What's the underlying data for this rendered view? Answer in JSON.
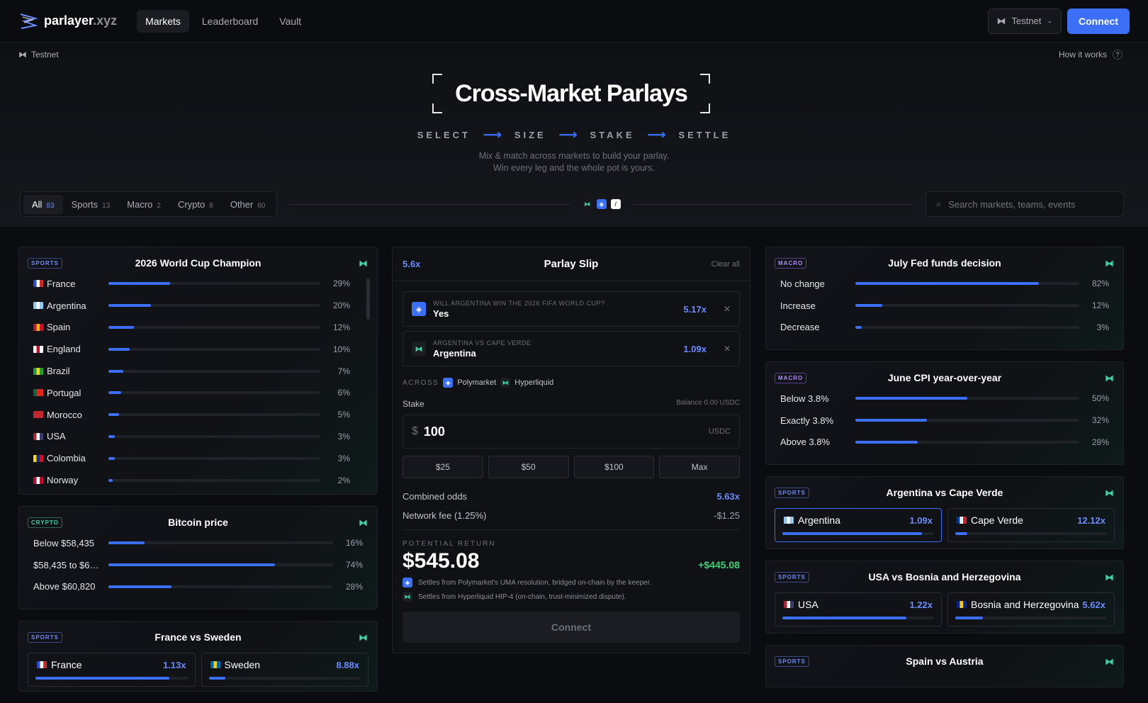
{
  "brand": {
    "name": "parlayer",
    "tld": ".xyz"
  },
  "nav": [
    {
      "label": "Markets"
    },
    {
      "label": "Leaderboard"
    },
    {
      "label": "Vault"
    }
  ],
  "header": {
    "network": "Testnet",
    "connect": "Connect"
  },
  "hero": {
    "testnet": "Testnet",
    "how": "How it works",
    "title": "Cross-Market Parlays",
    "steps": [
      "SELECT",
      "SIZE",
      "STAKE",
      "SETTLE"
    ],
    "tagline1": "Mix & match across markets to build your parlay.",
    "tagline2": "Win every leg and the whole pot is yours."
  },
  "filters": [
    {
      "label": "All",
      "count": "83"
    },
    {
      "label": "Sports",
      "count": "13"
    },
    {
      "label": "Macro",
      "count": "2"
    },
    {
      "label": "Crypto",
      "count": "8"
    },
    {
      "label": "Other",
      "count": "60"
    }
  ],
  "search": {
    "placeholder": "Search markets, teams, events"
  },
  "worldcup": {
    "badge": "SPORTS",
    "title": "2026 World Cup Champion",
    "rows": [
      {
        "label": "France",
        "pct": "29%",
        "value": 29,
        "flag": [
          "#2a4bd1",
          "#fff",
          "#d12a2a"
        ]
      },
      {
        "label": "Argentina",
        "pct": "20%",
        "value": 20,
        "flag": [
          "#8ec8f0",
          "#fff",
          "#8ec8f0"
        ]
      },
      {
        "label": "Spain",
        "pct": "12%",
        "value": 12,
        "flag": [
          "#c8102e",
          "#f1bf00",
          "#c8102e"
        ]
      },
      {
        "label": "England",
        "pct": "10%",
        "value": 10,
        "flag": [
          "#fff",
          "#c8102e",
          "#fff"
        ]
      },
      {
        "label": "Brazil",
        "pct": "7%",
        "value": 7,
        "flag": [
          "#1e9b3c",
          "#f7d417",
          "#1e9b3c"
        ]
      },
      {
        "label": "Portugal",
        "pct": "6%",
        "value": 6,
        "flag": [
          "#046a38",
          "#da291c",
          "#da291c"
        ]
      },
      {
        "label": "Morocco",
        "pct": "5%",
        "value": 5,
        "flag": [
          "#c1272d",
          "#c1272d",
          "#c1272d"
        ]
      },
      {
        "label": "USA",
        "pct": "3%",
        "value": 3,
        "flag": [
          "#b22234",
          "#fff",
          "#3c3b6e"
        ]
      },
      {
        "label": "Colombia",
        "pct": "3%",
        "value": 3,
        "flag": [
          "#fcd116",
          "#003893",
          "#ce1126"
        ]
      },
      {
        "label": "Norway",
        "pct": "2%",
        "value": 2,
        "flag": [
          "#ba0c2f",
          "#fff",
          "#ba0c2f"
        ]
      }
    ]
  },
  "bitcoin": {
    "badge": "CRYPTO",
    "title": "Bitcoin price",
    "rows": [
      {
        "label": "Below $58,435",
        "pct": "16%",
        "value": 16
      },
      {
        "label": "$58,435 to $6…",
        "pct": "74%",
        "value": 74
      },
      {
        "label": "Above $60,820",
        "pct": "28%",
        "value": 28
      }
    ]
  },
  "francesweden": {
    "badge": "SPORTS",
    "title": "France vs Sweden",
    "a": {
      "label": "France",
      "odds": "1.13x",
      "value": 88
    },
    "b": {
      "label": "Sweden",
      "odds": "8.88x",
      "value": 11
    }
  },
  "slip": {
    "mult": "5.6x",
    "title": "Parlay Slip",
    "clear": "Clear all",
    "legs": [
      {
        "q": "WILL ARGENTINA WIN THE 2026 FIFA WORLD CUP?",
        "a": "Yes",
        "odds": "5.17x"
      },
      {
        "q": "ARGENTINA VS CAPE VERDE",
        "a": "Argentina",
        "odds": "1.09x"
      }
    ],
    "across": "ACROSS",
    "src1": "Polymarket",
    "src2": "Hyperliquid",
    "stake": "Stake",
    "balance": "Balance 0.00 USDC",
    "cur": "$",
    "amount": "100",
    "unit": "USDC",
    "presets": [
      "$25",
      "$50",
      "$100",
      "Max"
    ],
    "combined_label": "Combined odds",
    "combined": "5.63x",
    "fee_label": "Network fee (1.25%)",
    "fee": "-$1.25",
    "ret_label": "POTENTIAL RETURN",
    "ret": "$545.08",
    "gain": "+$445.08",
    "note1": "Settles from Polymarket's UMA resolution, bridged on-chain by the keeper.",
    "note2": "Settles from Hyperliquid HIP-4 (on-chain, trust-minimized dispute).",
    "connect": "Connect"
  },
  "fed": {
    "badge": "MACRO",
    "title": "July Fed funds decision",
    "rows": [
      {
        "label": "No change",
        "pct": "82%",
        "value": 82
      },
      {
        "label": "Increase",
        "pct": "12%",
        "value": 12
      },
      {
        "label": "Decrease",
        "pct": "3%",
        "value": 3
      }
    ]
  },
  "cpi": {
    "badge": "MACRO",
    "title": "June CPI year-over-year",
    "rows": [
      {
        "label": "Below 3.8%",
        "pct": "50%",
        "value": 50
      },
      {
        "label": "Exactly 3.8%",
        "pct": "32%",
        "value": 32
      },
      {
        "label": "Above 3.8%",
        "pct": "28%",
        "value": 28
      }
    ]
  },
  "argcv": {
    "badge": "SPORTS",
    "title": "Argentina vs Cape Verde",
    "a": {
      "label": "Argentina",
      "odds": "1.09x",
      "value": 92
    },
    "b": {
      "label": "Cape Verde",
      "odds": "12.12x",
      "value": 8
    }
  },
  "usabih": {
    "badge": "SPORTS",
    "title": "USA vs Bosnia and Herzegovina",
    "a": {
      "label": "USA",
      "odds": "1.22x",
      "value": 82
    },
    "b": {
      "label": "Bosnia and Herzegovina",
      "odds": "5.62x",
      "value": 18
    }
  },
  "spainaus": {
    "badge": "SPORTS",
    "title": "Spain vs Austria"
  }
}
